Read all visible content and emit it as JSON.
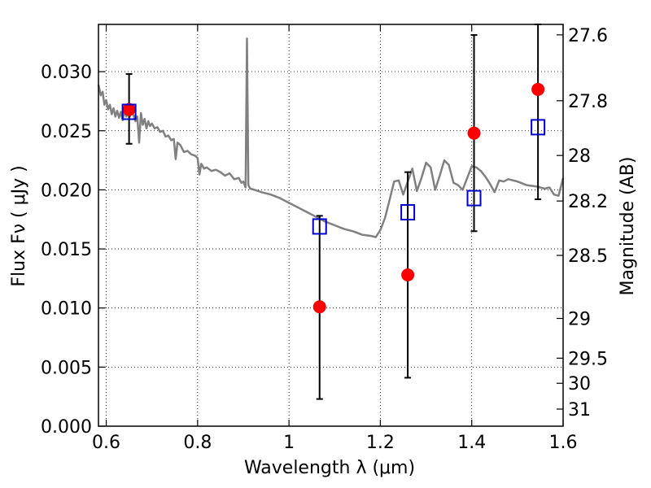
{
  "chart_data": {
    "type": "scatter",
    "xlabel": "Wavelength  λ (μm)",
    "ylabel": "Flux  Fν  ( μJy )",
    "ylabel_right": "Magnitude (AB)",
    "xlim": [
      0.583,
      1.6
    ],
    "ylim": [
      0.0,
      0.034
    ],
    "grid": true,
    "x_ticks": [
      0.6,
      0.8,
      1.0,
      1.2,
      1.4,
      1.6
    ],
    "x_tick_labels": [
      "0.6",
      "0.8",
      "1",
      "1.2",
      "1.4",
      "1.6"
    ],
    "y_ticks": [
      0.0,
      0.005,
      0.01,
      0.015,
      0.02,
      0.025,
      0.03
    ],
    "y_tick_labels": [
      "0.000",
      "0.005",
      "0.010",
      "0.015",
      "0.020",
      "0.025",
      "0.030"
    ],
    "right_ticks": [
      {
        "label": "27.6",
        "mag": 27.6
      },
      {
        "label": "27.8",
        "mag": 27.8
      },
      {
        "label": "28",
        "mag": 28.0
      },
      {
        "label": "28.2",
        "mag": 28.2
      },
      {
        "label": "28.5",
        "mag": 28.5
      },
      {
        "label": "29",
        "mag": 29.0
      },
      {
        "label": "29.5",
        "mag": 29.5
      },
      {
        "label": "30",
        "mag": 30.0
      },
      {
        "label": "31",
        "mag": 31.0
      }
    ],
    "series": [
      {
        "kind": "line",
        "color": "#808080",
        "x": [
          0.583,
          0.588,
          0.592,
          0.596,
          0.6,
          0.604,
          0.608,
          0.612,
          0.616,
          0.62,
          0.624,
          0.628,
          0.632,
          0.636,
          0.64,
          0.644,
          0.648,
          0.652,
          0.656,
          0.66,
          0.664,
          0.668,
          0.672,
          0.676,
          0.68,
          0.684,
          0.688,
          0.692,
          0.696,
          0.7,
          0.706,
          0.712,
          0.718,
          0.724,
          0.73,
          0.736,
          0.742,
          0.748,
          0.752,
          0.756,
          0.762,
          0.77,
          0.778,
          0.786,
          0.794,
          0.8,
          0.804,
          0.808,
          0.814,
          0.82,
          0.83,
          0.84,
          0.85,
          0.86,
          0.87,
          0.88,
          0.89,
          0.896,
          0.9,
          0.903,
          0.905,
          0.908,
          0.911,
          0.915,
          0.925,
          0.94,
          0.96,
          0.98,
          1.0,
          1.02,
          1.04,
          1.06,
          1.08,
          1.1,
          1.12,
          1.14,
          1.16,
          1.18,
          1.19,
          1.2,
          1.21,
          1.22,
          1.23,
          1.24,
          1.25,
          1.26,
          1.27,
          1.28,
          1.29,
          1.3,
          1.31,
          1.32,
          1.33,
          1.34,
          1.35,
          1.36,
          1.37,
          1.38,
          1.39,
          1.4,
          1.41,
          1.42,
          1.43,
          1.44,
          1.45,
          1.46,
          1.47,
          1.48,
          1.5,
          1.52,
          1.54,
          1.56,
          1.57,
          1.58,
          1.59,
          1.6
        ],
        "y": [
          0.0289,
          0.028,
          0.0283,
          0.0272,
          0.0276,
          0.0268,
          0.0272,
          0.0264,
          0.0269,
          0.0262,
          0.0267,
          0.0261,
          0.0266,
          0.0259,
          0.0267,
          0.0262,
          0.0268,
          0.0262,
          0.0266,
          0.0263,
          0.0258,
          0.0262,
          0.024,
          0.0265,
          0.0255,
          0.026,
          0.0252,
          0.0258,
          0.0254,
          0.0256,
          0.0252,
          0.0253,
          0.0249,
          0.025,
          0.0245,
          0.0246,
          0.0242,
          0.0243,
          0.0226,
          0.024,
          0.0238,
          0.0232,
          0.0233,
          0.023,
          0.0229,
          0.0227,
          0.0213,
          0.0222,
          0.0218,
          0.0219,
          0.0216,
          0.0217,
          0.0215,
          0.0212,
          0.0214,
          0.0209,
          0.021,
          0.0206,
          0.0207,
          0.0204,
          0.0202,
          0.0328,
          0.0204,
          0.0201,
          0.02,
          0.0198,
          0.0196,
          0.0193,
          0.0189,
          0.0185,
          0.0181,
          0.0177,
          0.0173,
          0.017,
          0.0167,
          0.0165,
          0.0162,
          0.0161,
          0.016,
          0.0166,
          0.0176,
          0.0191,
          0.0207,
          0.0208,
          0.0196,
          0.0207,
          0.0218,
          0.0199,
          0.021,
          0.0223,
          0.0219,
          0.02,
          0.0212,
          0.0225,
          0.0221,
          0.0206,
          0.0204,
          0.02,
          0.021,
          0.022,
          0.0219,
          0.0216,
          0.0211,
          0.0205,
          0.0198,
          0.0208,
          0.0207,
          0.0209,
          0.0207,
          0.0204,
          0.0203,
          0.0201,
          0.0202,
          0.0196,
          0.0195,
          0.021
        ]
      },
      {
        "kind": "points",
        "marker": "circle",
        "color": "#ff0000",
        "x": [
          0.65,
          1.067,
          1.26,
          1.405,
          1.545
        ],
        "y": [
          0.0268,
          0.0101,
          0.0128,
          0.0248,
          0.0285
        ]
      },
      {
        "kind": "points",
        "marker": "square",
        "color": "#0000cc",
        "x": [
          0.65,
          1.067,
          1.26,
          1.405,
          1.545
        ],
        "y": [
          0.0266,
          0.0169,
          0.0181,
          0.0193,
          0.0253
        ],
        "err_low": [
          0.0239,
          0.0023,
          0.0041,
          0.0165,
          0.0192
        ],
        "err_high": [
          0.0298,
          0.0178,
          0.0215,
          0.0331,
          0.034
        ]
      }
    ]
  }
}
